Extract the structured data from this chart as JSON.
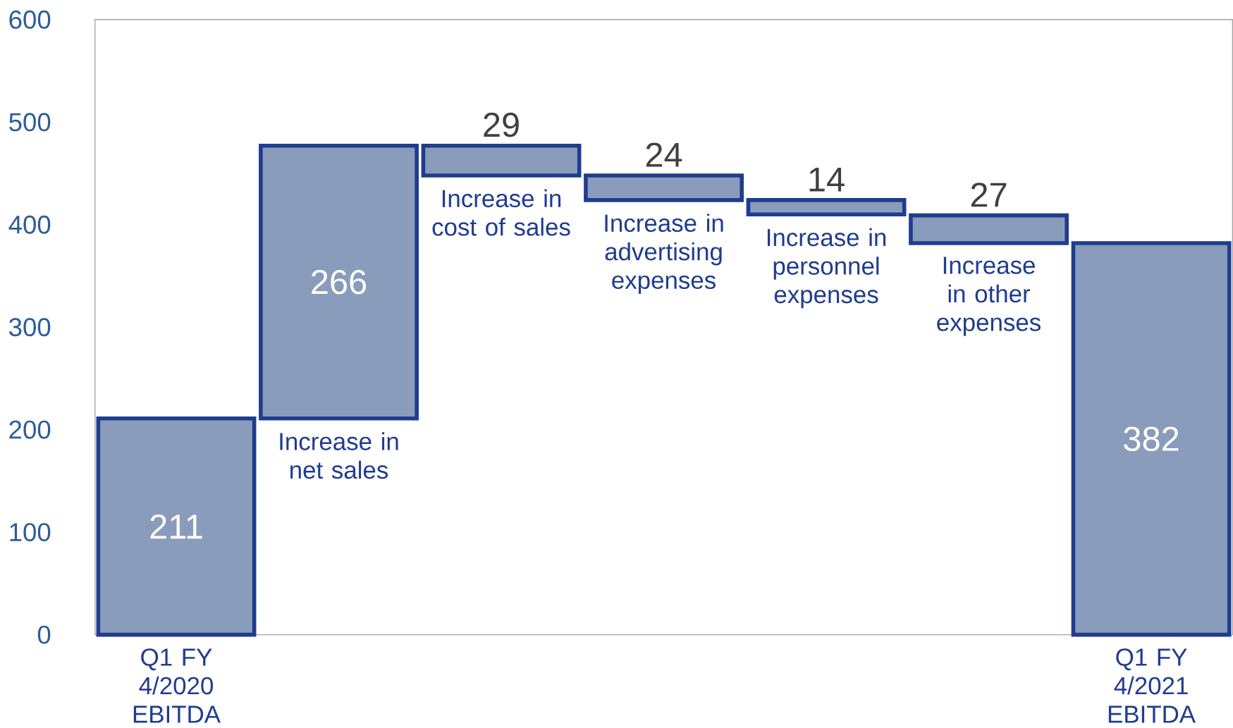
{
  "chart_data": {
    "type": "bar",
    "categories": [
      "Q1 FY 4/2020 EBITDA",
      "Increase in net sales",
      "Increase in cost of sales",
      "Increase in advertising expenses",
      "Increase in personnel expenses",
      "Increase in other expenses",
      "Q1 FY 4/2021 EBITDA"
    ],
    "values": [
      211,
      266,
      -29,
      -24,
      -14,
      -27,
      382
    ],
    "base": [
      0,
      211,
      477,
      448,
      424,
      409,
      0
    ],
    "value_labels": [
      "211",
      "266",
      "29",
      "24",
      "14",
      "27",
      "382"
    ],
    "color": "#8a9cbb",
    "ylim": [
      0,
      600
    ],
    "yticks": [
      0,
      100,
      200,
      300,
      400,
      500,
      600
    ]
  }
}
